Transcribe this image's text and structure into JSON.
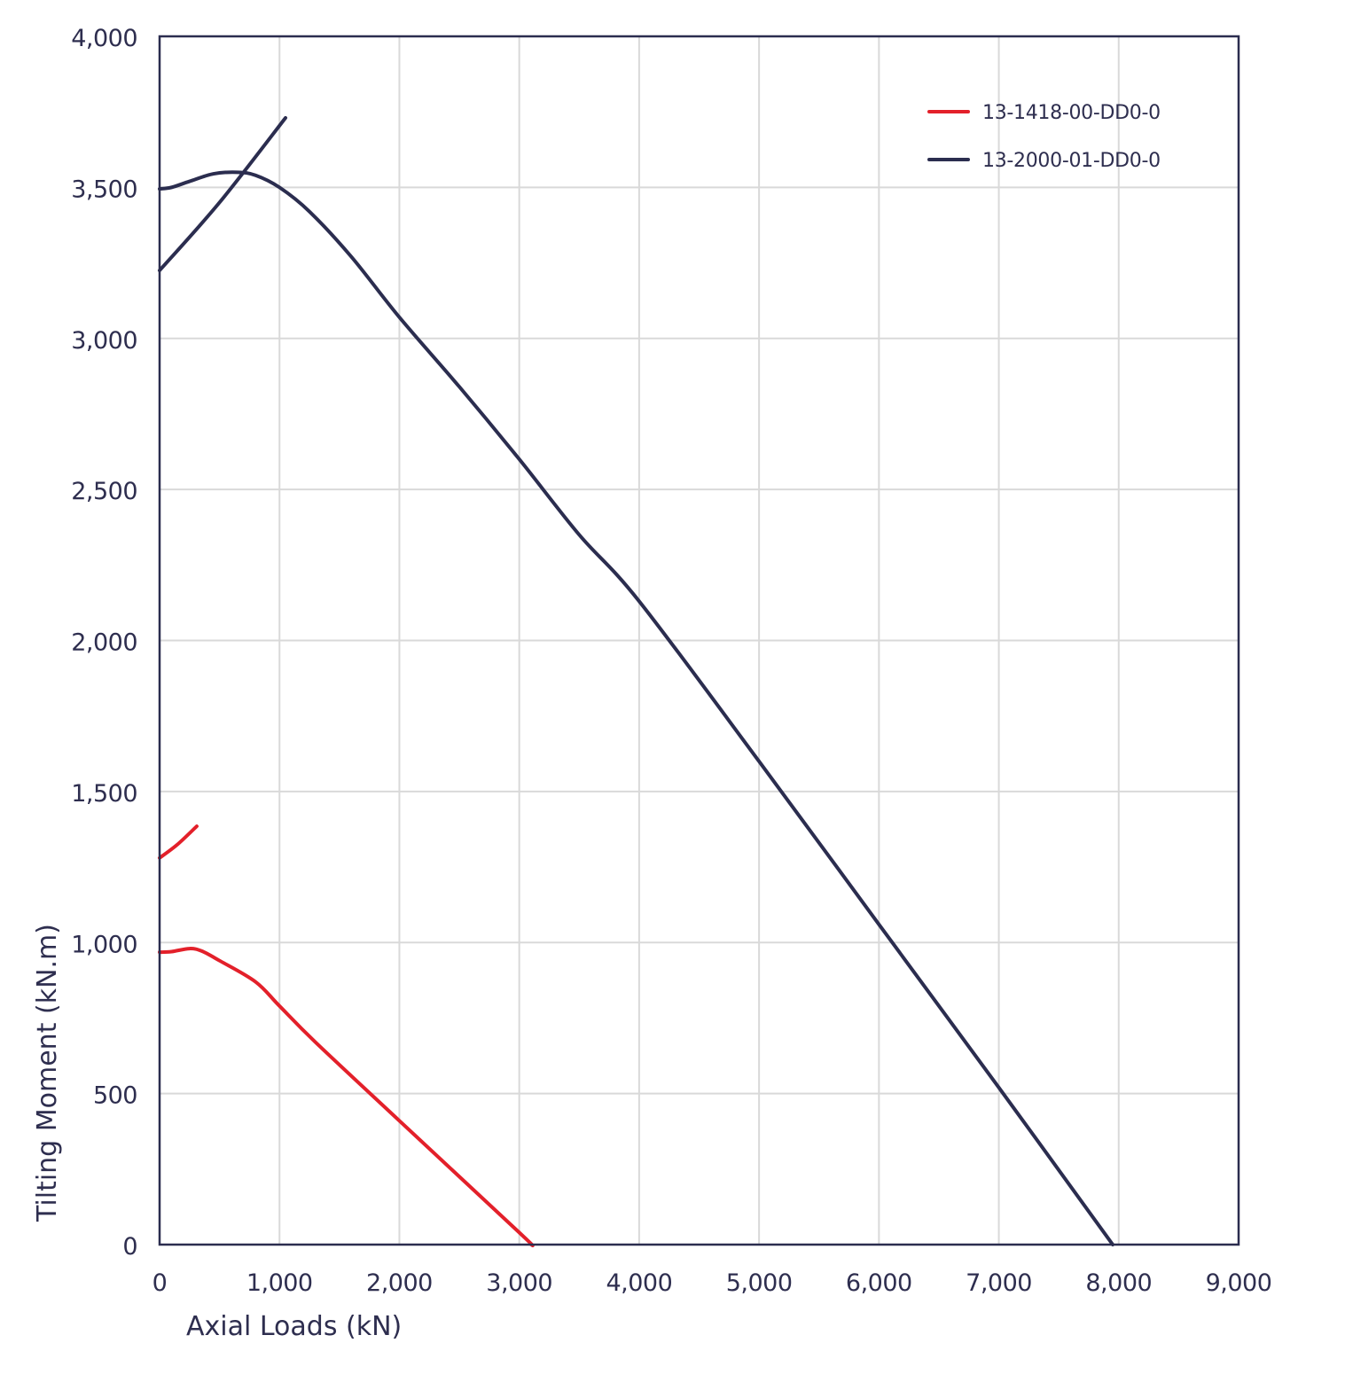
{
  "chart_data": {
    "type": "line",
    "title": "",
    "xlabel": "Axial Loads (kN)",
    "ylabel": "Tilting Moment (kN.m)",
    "xlim": [
      0,
      9000
    ],
    "ylim": [
      0,
      4000
    ],
    "x_ticks": [
      0,
      1000,
      2000,
      3000,
      4000,
      5000,
      6000,
      7000,
      8000,
      9000
    ],
    "x_tick_labels": [
      "0",
      "1,000",
      "2,000",
      "3,000",
      "4,000",
      "5,000",
      "6,000",
      "7,000",
      "8,000",
      "9,000"
    ],
    "y_ticks": [
      0,
      500,
      1000,
      1500,
      2000,
      2500,
      3000,
      3500,
      4000
    ],
    "y_tick_labels": [
      "0",
      "500",
      "1,000",
      "1,500",
      "2,000",
      "2,500",
      "3,000",
      "3,500",
      "4,000"
    ],
    "grid": true,
    "legend_position": "top-right",
    "series": [
      {
        "name": "13-1418-00-DD0-0",
        "color": "#e3202a",
        "segments": [
          [
            [
              0,
              968
            ],
            [
              100,
              970
            ],
            [
              250,
              980
            ],
            [
              350,
              972
            ],
            [
              500,
              940
            ],
            [
              800,
              870
            ],
            [
              1000,
              790
            ],
            [
              1300,
              670
            ],
            [
              2000,
              410
            ],
            [
              3000,
              40
            ],
            [
              3100,
              0
            ]
          ],
          [
            [
              0,
              1280
            ],
            [
              150,
              1325
            ],
            [
              310,
              1385
            ]
          ]
        ]
      },
      {
        "name": "13-2000-01-DD0-0",
        "color": "#2b2d4f",
        "segments": [
          [
            [
              0,
              3495
            ],
            [
              100,
              3500
            ],
            [
              250,
              3520
            ],
            [
              450,
              3545
            ],
            [
              650,
              3550
            ],
            [
              800,
              3540
            ],
            [
              1000,
              3500
            ],
            [
              1250,
              3420
            ],
            [
              1600,
              3270
            ],
            [
              2000,
              3070
            ],
            [
              2500,
              2840
            ],
            [
              3000,
              2600
            ],
            [
              3500,
              2350
            ],
            [
              4000,
              2130
            ],
            [
              5000,
              1600
            ],
            [
              6000,
              1060
            ],
            [
              7000,
              520
            ],
            [
              7950,
              0
            ]
          ],
          [
            [
              0,
              3225
            ],
            [
              500,
              3450
            ],
            [
              1050,
              3730
            ]
          ]
        ]
      }
    ]
  }
}
